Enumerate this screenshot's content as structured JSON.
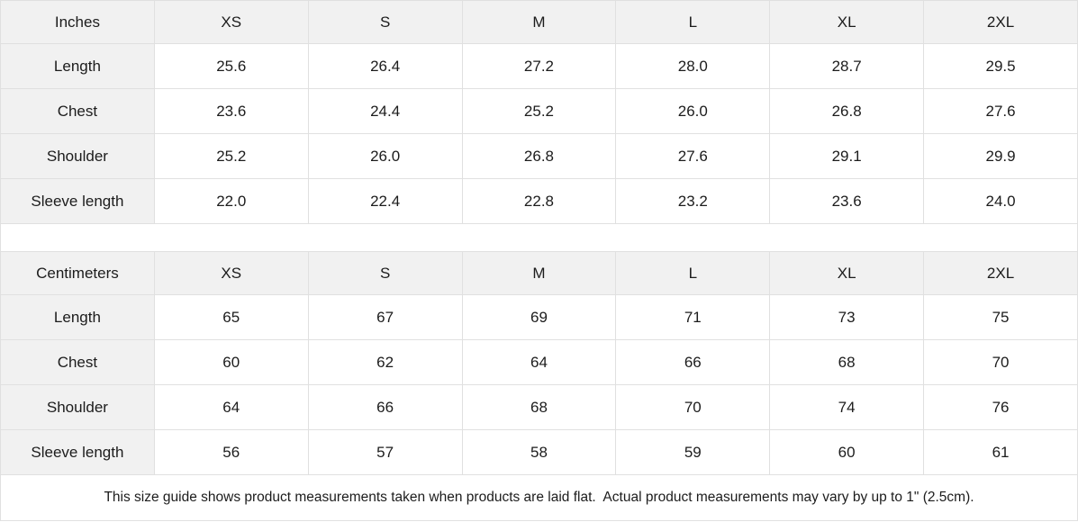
{
  "colors": {
    "header_bg": "#f1f1f1",
    "border": "#e0e0e0",
    "text": "#1c1c1c",
    "bg": "#ffffff"
  },
  "size_guide": {
    "tables": [
      {
        "unit_label": "Inches",
        "columns": [
          "XS",
          "S",
          "M",
          "L",
          "XL",
          "2XL"
        ],
        "rows": [
          {
            "label": "Length",
            "values": [
              "25.6",
              "26.4",
              "27.2",
              "28.0",
              "28.7",
              "29.5"
            ]
          },
          {
            "label": "Chest",
            "values": [
              "23.6",
              "24.4",
              "25.2",
              "26.0",
              "26.8",
              "27.6"
            ]
          },
          {
            "label": "Shoulder",
            "values": [
              "25.2",
              "26.0",
              "26.8",
              "27.6",
              "29.1",
              "29.9"
            ]
          },
          {
            "label": "Sleeve length",
            "values": [
              "22.0",
              "22.4",
              "22.8",
              "23.2",
              "23.6",
              "24.0"
            ]
          }
        ]
      },
      {
        "unit_label": "Centimeters",
        "columns": [
          "XS",
          "S",
          "M",
          "L",
          "XL",
          "2XL"
        ],
        "rows": [
          {
            "label": "Length",
            "values": [
              "65",
              "67",
              "69",
              "71",
              "73",
              "75"
            ]
          },
          {
            "label": "Chest",
            "values": [
              "60",
              "62",
              "64",
              "66",
              "68",
              "70"
            ]
          },
          {
            "label": "Shoulder",
            "values": [
              "64",
              "66",
              "68",
              "70",
              "74",
              "76"
            ]
          },
          {
            "label": "Sleeve length",
            "values": [
              "56",
              "57",
              "58",
              "59",
              "60",
              "61"
            ]
          }
        ]
      }
    ],
    "footnote": "This size guide shows product measurements taken when products are laid flat.  Actual product measurements may vary by up to 1\" (2.5cm)."
  }
}
